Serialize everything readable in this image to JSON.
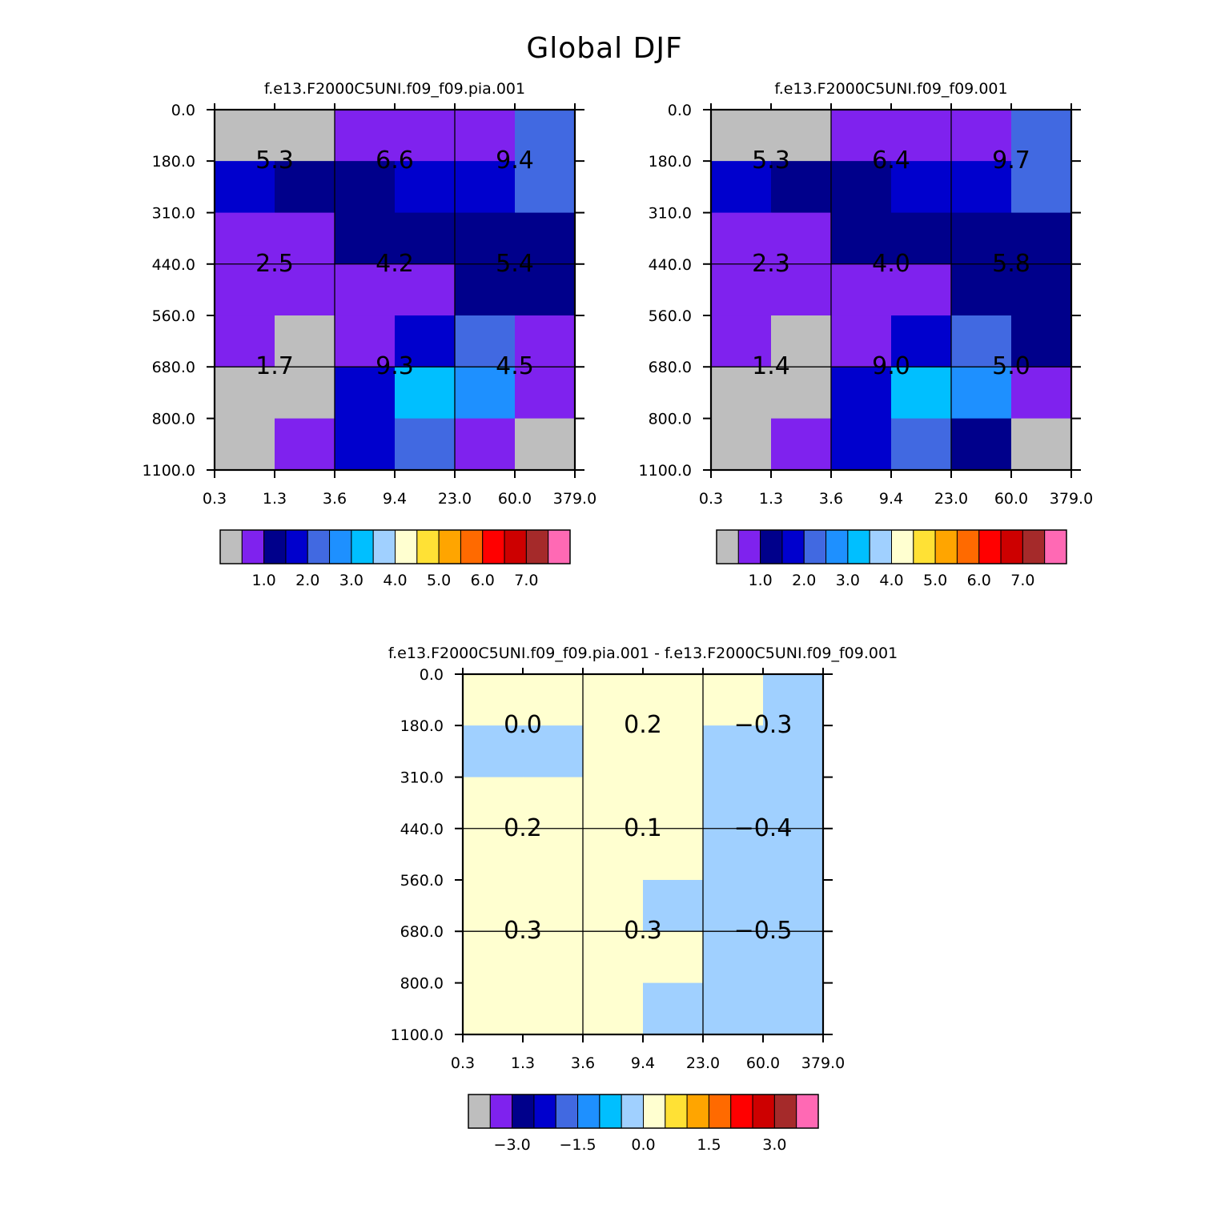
{
  "main_title": "Global DJF",
  "colors": {
    "palette": [
      "#bebebe",
      "#7f22ee",
      "#00008b",
      "#0000cd",
      "#4169e1",
      "#1e90ff",
      "#00bfff",
      "#a0d0ff",
      "#ffffd0",
      "#ffe135",
      "#ffa500",
      "#ff6a00",
      "#ff0000",
      "#cd0000",
      "#a52a2a",
      "#ff69b4"
    ]
  },
  "chart_data": [
    {
      "type": "heatmap",
      "title": "f.e13.F2000C5UNI.f09_f09.pia.001",
      "xticks": [
        "0.3",
        "1.3",
        "3.6",
        "9.4",
        "23.0",
        "60.0",
        "379.0"
      ],
      "yticks": [
        "0.0",
        "180.0",
        "310.0",
        "440.0",
        "560.0",
        "680.0",
        "800.0",
        "1100.0"
      ],
      "cells_color_index": [
        [
          0,
          0,
          1,
          1,
          1,
          4
        ],
        [
          3,
          2,
          2,
          3,
          3,
          4
        ],
        [
          1,
          1,
          2,
          2,
          2,
          2
        ],
        [
          1,
          1,
          1,
          1,
          2,
          2
        ],
        [
          1,
          0,
          1,
          3,
          4,
          1
        ],
        [
          0,
          0,
          3,
          6,
          5,
          1
        ],
        [
          0,
          1,
          3,
          4,
          1,
          0
        ]
      ],
      "labels": [
        [
          "5.3",
          "6.6",
          "9.4"
        ],
        [
          "2.5",
          "4.2",
          "5.4"
        ],
        [
          "1.7",
          "9.3",
          "4.5"
        ]
      ],
      "colorbar": {
        "n_boxes": 16,
        "labels": [
          "1.0",
          "2.0",
          "3.0",
          "4.0",
          "5.0",
          "6.0",
          "7.0"
        ],
        "boundaries": [
          0.5,
          1,
          1.5,
          2,
          2.5,
          3,
          3.5,
          4,
          4.5,
          5,
          5.5,
          6,
          6.5,
          7,
          7.5
        ]
      }
    },
    {
      "type": "heatmap",
      "title": "f.e13.F2000C5UNI.f09_f09.001",
      "xticks": [
        "0.3",
        "1.3",
        "3.6",
        "9.4",
        "23.0",
        "60.0",
        "379.0"
      ],
      "yticks": [
        "0.0",
        "180.0",
        "310.0",
        "440.0",
        "560.0",
        "680.0",
        "800.0",
        "1100.0"
      ],
      "cells_color_index": [
        [
          0,
          0,
          1,
          1,
          1,
          4
        ],
        [
          3,
          2,
          2,
          3,
          3,
          4
        ],
        [
          1,
          1,
          2,
          2,
          2,
          2
        ],
        [
          1,
          1,
          1,
          1,
          2,
          2
        ],
        [
          1,
          0,
          1,
          3,
          4,
          2
        ],
        [
          0,
          0,
          3,
          6,
          5,
          1
        ],
        [
          0,
          1,
          3,
          4,
          2,
          0
        ]
      ],
      "labels": [
        [
          "5.3",
          "6.4",
          "9.7"
        ],
        [
          "2.3",
          "4.0",
          "5.8"
        ],
        [
          "1.4",
          "9.0",
          "5.0"
        ]
      ],
      "colorbar": {
        "n_boxes": 16,
        "labels": [
          "1.0",
          "2.0",
          "3.0",
          "4.0",
          "5.0",
          "6.0",
          "7.0"
        ],
        "boundaries": [
          0.5,
          1,
          1.5,
          2,
          2.5,
          3,
          3.5,
          4,
          4.5,
          5,
          5.5,
          6,
          6.5,
          7,
          7.5
        ]
      }
    },
    {
      "type": "heatmap",
      "title": "f.e13.F2000C5UNI.f09_f09.pia.001 - f.e13.F2000C5UNI.f09_f09.001",
      "xticks": [
        "0.3",
        "1.3",
        "3.6",
        "9.4",
        "23.0",
        "60.0",
        "379.0"
      ],
      "yticks": [
        "0.0",
        "180.0",
        "310.0",
        "440.0",
        "560.0",
        "680.0",
        "800.0",
        "1100.0"
      ],
      "cells_color_index": [
        [
          8,
          8,
          8,
          8,
          8,
          7
        ],
        [
          7,
          7,
          8,
          8,
          7,
          7
        ],
        [
          8,
          8,
          8,
          8,
          7,
          7
        ],
        [
          8,
          8,
          8,
          8,
          7,
          7
        ],
        [
          8,
          8,
          8,
          7,
          7,
          7
        ],
        [
          8,
          8,
          8,
          8,
          7,
          7
        ],
        [
          8,
          8,
          8,
          7,
          7,
          7
        ]
      ],
      "labels": [
        [
          "0.0",
          "0.2",
          "−0.3"
        ],
        [
          "0.2",
          "0.1",
          "−0.4"
        ],
        [
          "0.3",
          "0.3",
          "−0.5"
        ]
      ],
      "colorbar": {
        "n_boxes": 16,
        "labels": [
          "−3.0",
          "−1.5",
          "0.0",
          "1.5",
          "3.0"
        ],
        "boundaries": [
          -3.5,
          -3,
          -2.5,
          -2,
          -1.5,
          -1,
          -0.5,
          0,
          0.5,
          1,
          1.5,
          2,
          2.5,
          3,
          3.5
        ]
      }
    }
  ]
}
